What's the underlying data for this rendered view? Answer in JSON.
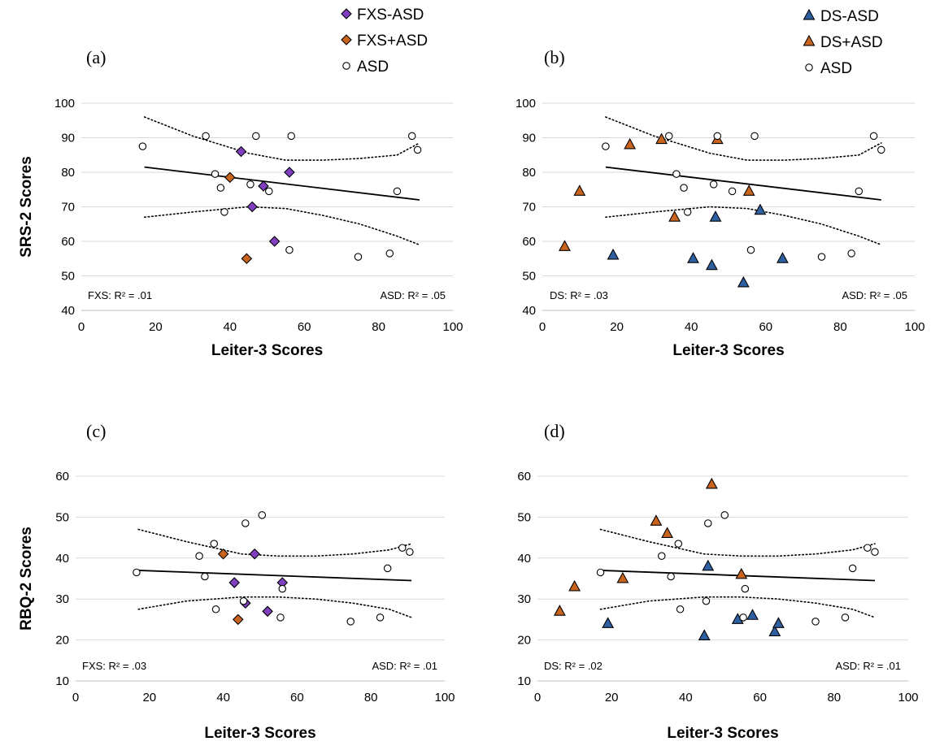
{
  "colors": {
    "fxs_no_asd": "#7f3fbf",
    "fxs_asd": "#c8641e",
    "ds_no_asd": "#2e5fa0",
    "ds_asd": "#c8641e",
    "asd": "#ffffff",
    "grid": "#d9d9d9"
  },
  "legends": {
    "left": [
      {
        "label": "FXS-ASD",
        "marker": "diamond",
        "color": "#7f3fbf"
      },
      {
        "label": "FXS+ASD",
        "marker": "diamond",
        "color": "#c8641e"
      },
      {
        "label": "ASD",
        "marker": "circle",
        "color": "#ffffff"
      }
    ],
    "right": [
      {
        "label": "DS-ASD",
        "marker": "triangle",
        "color": "#2e5fa0"
      },
      {
        "label": "DS+ASD",
        "marker": "triangle",
        "color": "#c8641e"
      },
      {
        "label": "ASD",
        "marker": "circle",
        "color": "#ffffff"
      }
    ]
  },
  "chart_data": [
    {
      "type": "scatter",
      "panel_label": "(a)",
      "xlabel": "Leiter-3 Scores",
      "ylabel": "SRS-2 Scores",
      "xlim": [
        0,
        100
      ],
      "ylim": [
        40,
        100
      ],
      "xticks": [
        0,
        20,
        40,
        60,
        80,
        100
      ],
      "yticks": [
        40,
        50,
        60,
        70,
        80,
        90,
        100
      ],
      "grid": true,
      "annotations": {
        "left": "FXS: R² = .01",
        "right": "ASD: R² = .05"
      },
      "series": [
        {
          "name": "FXS-ASD",
          "marker": "diamond",
          "color": "#7f3fbf",
          "points": [
            [
              43,
              86
            ],
            [
              49,
              76
            ],
            [
              56,
              80
            ],
            [
              46,
              70
            ],
            [
              52,
              60
            ]
          ]
        },
        {
          "name": "FXS+ASD",
          "marker": "diamond",
          "color": "#c8641e",
          "points": [
            [
              40,
              78.5
            ],
            [
              44.5,
              55
            ]
          ]
        },
        {
          "name": "ASD",
          "marker": "circle",
          "color": "#ffffff",
          "points": [
            [
              16.5,
              87.5
            ],
            [
              33.5,
              90.5
            ],
            [
              47,
              90.5
            ],
            [
              56.5,
              90.5
            ],
            [
              89,
              90.5
            ],
            [
              90.5,
              86.5
            ],
            [
              36,
              79.5
            ],
            [
              37.5,
              75.5
            ],
            [
              45.5,
              76.5
            ],
            [
              50.5,
              74.5
            ],
            [
              38.5,
              68.5
            ],
            [
              85,
              74.5
            ],
            [
              56,
              57.5
            ],
            [
              74.5,
              55.5
            ],
            [
              83,
              56.5
            ]
          ]
        }
      ],
      "fit_line": {
        "x": [
          17,
          91
        ],
        "y": [
          81.5,
          72
        ]
      },
      "ci_upper": {
        "x": [
          17,
          30,
          45,
          55,
          65,
          75,
          85,
          91
        ],
        "y": [
          96,
          90.5,
          85.5,
          83.5,
          83.5,
          84,
          85,
          88.5
        ]
      },
      "ci_lower": {
        "x": [
          17,
          30,
          45,
          55,
          65,
          75,
          85,
          91
        ],
        "y": [
          67,
          68.5,
          70,
          69.5,
          67.5,
          65,
          61.5,
          59
        ]
      }
    },
    {
      "type": "scatter",
      "panel_label": "(b)",
      "xlabel": "Leiter-3 Scores",
      "ylabel": "",
      "xlim": [
        0,
        100
      ],
      "ylim": [
        40,
        100
      ],
      "xticks": [
        0,
        20,
        40,
        60,
        80,
        100
      ],
      "yticks": [
        40,
        50,
        60,
        70,
        80,
        90,
        100
      ],
      "grid": true,
      "annotations": {
        "left": "DS: R² = .03",
        "right": "ASD: R² = .05"
      },
      "series": [
        {
          "name": "DS-ASD",
          "marker": "triangle",
          "color": "#2e5fa0",
          "points": [
            [
              19,
              56
            ],
            [
              40.5,
              55
            ],
            [
              45.5,
              53
            ],
            [
              46.5,
              67
            ],
            [
              54,
              48
            ],
            [
              58.5,
              69
            ],
            [
              64.5,
              55
            ]
          ]
        },
        {
          "name": "DS+ASD",
          "marker": "triangle",
          "color": "#c8641e",
          "points": [
            [
              6,
              58.5
            ],
            [
              10,
              74.5
            ],
            [
              23.5,
              88
            ],
            [
              32,
              89.5
            ],
            [
              35.5,
              67
            ],
            [
              47,
              89.5
            ],
            [
              55.5,
              74.5
            ]
          ]
        },
        {
          "name": "ASD",
          "marker": "circle",
          "color": "#ffffff",
          "points": [
            [
              17,
              87.5
            ],
            [
              34,
              90.5
            ],
            [
              47,
              90.5
            ],
            [
              57,
              90.5
            ],
            [
              89,
              90.5
            ],
            [
              91,
              86.5
            ],
            [
              36,
              79.5
            ],
            [
              38,
              75.5
            ],
            [
              46,
              76.5
            ],
            [
              51,
              74.5
            ],
            [
              39,
              68.5
            ],
            [
              85,
              74.5
            ],
            [
              56,
              57.5
            ],
            [
              75,
              55.5
            ],
            [
              83,
              56.5
            ]
          ]
        }
      ],
      "fit_line": {
        "x": [
          17,
          91
        ],
        "y": [
          81.5,
          72
        ]
      },
      "ci_upper": {
        "x": [
          17,
          30,
          45,
          55,
          65,
          75,
          85,
          91
        ],
        "y": [
          96,
          90.5,
          85.5,
          83.5,
          83.5,
          84,
          85,
          88.5
        ]
      },
      "ci_lower": {
        "x": [
          17,
          30,
          45,
          55,
          65,
          75,
          85,
          91
        ],
        "y": [
          67,
          68.5,
          70,
          69.5,
          67.5,
          65,
          61.5,
          59
        ]
      }
    },
    {
      "type": "scatter",
      "panel_label": "(c)",
      "xlabel": "Leiter-3 Scores",
      "ylabel": "RBQ-2 Scores",
      "xlim": [
        0,
        100
      ],
      "ylim": [
        10,
        60
      ],
      "xticks": [
        0,
        20,
        40,
        60,
        80,
        100
      ],
      "yticks": [
        10,
        20,
        30,
        40,
        50,
        60
      ],
      "grid": true,
      "annotations": {
        "left": "FXS: R² = .03",
        "right": "ASD: R² = .01"
      },
      "series": [
        {
          "name": "FXS-ASD",
          "marker": "diamond",
          "color": "#7f3fbf",
          "points": [
            [
              48.5,
              41
            ],
            [
              43,
              34
            ],
            [
              56,
              34
            ],
            [
              46,
              29
            ],
            [
              52,
              27
            ]
          ]
        },
        {
          "name": "FXS+ASD",
          "marker": "diamond",
          "color": "#c8641e",
          "points": [
            [
              40,
              41
            ],
            [
              44,
              25
            ]
          ]
        },
        {
          "name": "ASD",
          "marker": "circle",
          "color": "#ffffff",
          "points": [
            [
              16.5,
              36.5
            ],
            [
              33.5,
              40.5
            ],
            [
              35,
              35.5
            ],
            [
              37.5,
              43.5
            ],
            [
              38,
              27.5
            ],
            [
              46,
              48.5
            ],
            [
              50.5,
              50.5
            ],
            [
              45.5,
              29.5
            ],
            [
              56,
              32.5
            ],
            [
              55.5,
              25.5
            ],
            [
              74.5,
              24.5
            ],
            [
              82.5,
              25.5
            ],
            [
              84.5,
              37.5
            ],
            [
              88.5,
              42.5
            ],
            [
              90.5,
              41.5
            ]
          ]
        }
      ],
      "fit_line": {
        "x": [
          17,
          91
        ],
        "y": [
          37,
          34.5
        ]
      },
      "ci_upper": {
        "x": [
          17,
          30,
          45,
          55,
          65,
          75,
          85,
          91
        ],
        "y": [
          47,
          44,
          41,
          40.5,
          40.5,
          41,
          42,
          43.5
        ]
      },
      "ci_lower": {
        "x": [
          17,
          30,
          45,
          55,
          65,
          75,
          85,
          91
        ],
        "y": [
          27.5,
          29.5,
          30.5,
          30.5,
          30,
          29,
          27.5,
          25.5
        ]
      }
    },
    {
      "type": "scatter",
      "panel_label": "(d)",
      "xlabel": "Leiter-3 Scores",
      "ylabel": "",
      "xlim": [
        0,
        100
      ],
      "ylim": [
        10,
        60
      ],
      "xticks": [
        0,
        20,
        40,
        60,
        80,
        100
      ],
      "yticks": [
        10,
        20,
        30,
        40,
        50,
        60
      ],
      "grid": true,
      "annotations": {
        "left": "DS: R² = .02",
        "right": "ASD: R² = .01"
      },
      "series": [
        {
          "name": "DS-ASD",
          "marker": "triangle",
          "color": "#2e5fa0",
          "points": [
            [
              19,
              24
            ],
            [
              45,
              21
            ],
            [
              46,
              38
            ],
            [
              54,
              25
            ],
            [
              58,
              26
            ],
            [
              64,
              22
            ],
            [
              65,
              24
            ]
          ]
        },
        {
          "name": "DS+ASD",
          "marker": "triangle",
          "color": "#c8641e",
          "points": [
            [
              6,
              27
            ],
            [
              10,
              33
            ],
            [
              23,
              35
            ],
            [
              32,
              49
            ],
            [
              35,
              46
            ],
            [
              47,
              58
            ],
            [
              55,
              36
            ]
          ]
        },
        {
          "name": "ASD",
          "marker": "circle",
          "color": "#ffffff",
          "points": [
            [
              17,
              36.5
            ],
            [
              33.5,
              40.5
            ],
            [
              36,
              35.5
            ],
            [
              38,
              43.5
            ],
            [
              38.5,
              27.5
            ],
            [
              46,
              48.5
            ],
            [
              50.5,
              50.5
            ],
            [
              45.5,
              29.5
            ],
            [
              56,
              32.5
            ],
            [
              55.5,
              25.5
            ],
            [
              75,
              24.5
            ],
            [
              83,
              25.5
            ],
            [
              85,
              37.5
            ],
            [
              89,
              42.5
            ],
            [
              91,
              41.5
            ]
          ]
        }
      ],
      "fit_line": {
        "x": [
          17,
          91
        ],
        "y": [
          37,
          34.5
        ]
      },
      "ci_upper": {
        "x": [
          17,
          30,
          45,
          55,
          65,
          75,
          85,
          91
        ],
        "y": [
          47,
          44,
          41,
          40.5,
          40.5,
          41,
          42,
          43.5
        ]
      },
      "ci_lower": {
        "x": [
          17,
          30,
          45,
          55,
          65,
          75,
          85,
          91
        ],
        "y": [
          27.5,
          29.5,
          30.5,
          30.5,
          30,
          29,
          27.5,
          25.5
        ]
      }
    }
  ]
}
